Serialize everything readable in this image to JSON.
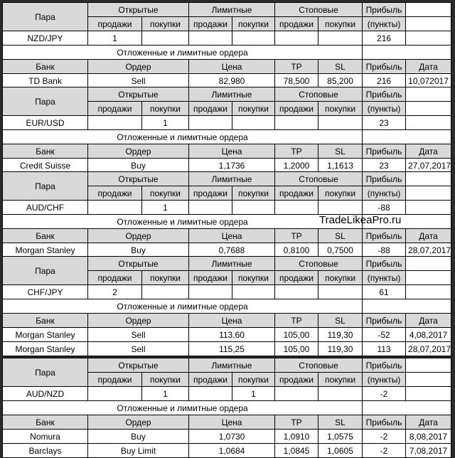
{
  "labels": {
    "pair": "Пара",
    "open": "Открытые",
    "limit": "Лимитные",
    "stop": "Стоповые",
    "profit": "Прибыль",
    "points": "(пункты)",
    "sell_h": "продажи",
    "buy_h": "покупки",
    "pending": "Отложенные и лимитные ордера",
    "bank": "Банк",
    "order": "Ордер",
    "price": "Цена",
    "tp": "TP",
    "sl": "SL",
    "date": "Дата"
  },
  "watermark": "TradeLikeaPro.ru",
  "colors": {
    "positive": "#2da84f",
    "negative": "#e8120c",
    "header_bg": "#d9d9d9"
  },
  "blocks": [
    {
      "pair": "NZD/JPY",
      "counts": [
        "1",
        "",
        "",
        "",
        "",
        ""
      ],
      "profit": "216",
      "sign": "pos",
      "orders": [
        {
          "bank": "TD Bank",
          "order": "Sell",
          "price": "82,980",
          "tp": "78,500",
          "sl": "85,200",
          "profit": "216",
          "sign": "pos",
          "date": "10,072017"
        }
      ]
    },
    {
      "pair": "EUR/USD",
      "counts": [
        "",
        "1",
        "",
        "",
        "",
        ""
      ],
      "profit": "23",
      "sign": "pos",
      "orders": [
        {
          "bank": "Credit Suisse",
          "order": "Buy",
          "price": "1,1736",
          "tp": "1,2000",
          "sl": "1,1613",
          "profit": "23",
          "sign": "pos",
          "date": "27,07,2017"
        }
      ]
    },
    {
      "pair": "AUD/CHF",
      "counts": [
        "",
        "1",
        "",
        "",
        "",
        ""
      ],
      "profit": "-88",
      "sign": "neg",
      "orders": [
        {
          "bank": "Morgan Stanley",
          "order": "Buy",
          "price": "0,7688",
          "tp": "0,8100",
          "sl": "0,7500",
          "profit": "-88",
          "sign": "neg",
          "date": "28,07,2017"
        }
      ]
    },
    {
      "pair": "CHF/JPY",
      "counts": [
        "2",
        "",
        "",
        "",
        "",
        ""
      ],
      "profit": "61",
      "sign": "pos",
      "orders": [
        {
          "bank": "Morgan Stanley",
          "order": "Sell",
          "price": "113,60",
          "tp": "105,00",
          "sl": "119,30",
          "profit": "-52",
          "sign": "neg",
          "date": "4,08,2017"
        },
        {
          "bank": "Morgan Stanley",
          "order": "Sell",
          "price": "115,25",
          "tp": "105,00",
          "sl": "119,30",
          "profit": "113",
          "sign": "pos",
          "date": "28,07,2017"
        }
      ]
    },
    {
      "pair": "AUD/NZD",
      "counts": [
        "",
        "1",
        "",
        "1",
        "",
        ""
      ],
      "profit": "-2",
      "sign": "neg",
      "orders": [
        {
          "bank": "Nomura",
          "order": "Buy",
          "price": "1,0730",
          "tp": "1,0910",
          "sl": "1,0575",
          "profit": "-2",
          "sign": "neg",
          "date": "8,08,2017"
        },
        {
          "bank": "Barclays",
          "order": "Buy Limit",
          "price": "1,0684",
          "tp": "1,0845",
          "sl": "1,0605",
          "profit": "-2",
          "sign": "neg",
          "date": "7,08,2017"
        }
      ]
    }
  ]
}
